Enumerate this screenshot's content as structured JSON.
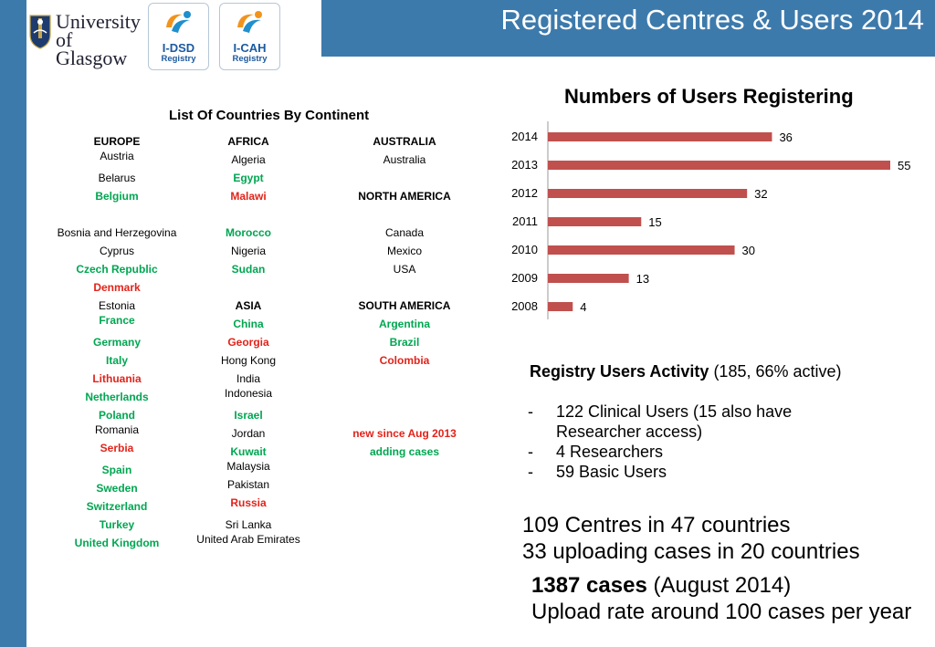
{
  "header": {
    "title": "Registered Centres & Users 2014",
    "university_line1": "University",
    "university_line2": "of Glasgow",
    "logos": [
      {
        "name": "I-DSD",
        "sub": "Registry"
      },
      {
        "name": "I-CAH",
        "sub": "Registry"
      }
    ],
    "bar_color": "#3d7aac"
  },
  "countries": {
    "title": "List Of Countries By Continent",
    "legend": {
      "green": "new since Aug 2013",
      "red": "adding cases"
    },
    "colors": {
      "green": "#00a651",
      "red": "#e2231a"
    },
    "col1": [
      {
        "text": "EUROPE",
        "style": "hdr"
      },
      {
        "text": "Austria",
        "style": "plain"
      },
      {
        "text": "Belarus",
        "style": "plain"
      },
      {
        "text": "Belgium",
        "style": "green"
      },
      {
        "text": "Bosnia and Herzegovina",
        "style": "plain"
      },
      {
        "text": "Cyprus",
        "style": "plain"
      },
      {
        "text": "Czech Republic",
        "style": "green"
      },
      {
        "text": "Denmark",
        "style": "red"
      },
      {
        "text": "Estonia",
        "style": "plain"
      },
      {
        "text": "France",
        "style": "green"
      },
      {
        "text": "Germany",
        "style": "green"
      },
      {
        "text": "Italy",
        "style": "green"
      },
      {
        "text": "Lithuania",
        "style": "red"
      },
      {
        "text": "Netherlands",
        "style": "green"
      },
      {
        "text": "Poland",
        "style": "green"
      },
      {
        "text": "Romania",
        "style": "plain"
      },
      {
        "text": "Serbia",
        "style": "red"
      },
      {
        "text": "Spain",
        "style": "green"
      },
      {
        "text": "Sweden",
        "style": "green"
      },
      {
        "text": "Switzerland",
        "style": "green"
      },
      {
        "text": "Turkey",
        "style": "green"
      },
      {
        "text": "United Kingdom",
        "style": "green"
      }
    ],
    "col2": [
      {
        "text": "AFRICA",
        "style": "hdr"
      },
      {
        "text": "Algeria",
        "style": "plain"
      },
      {
        "text": "Egypt",
        "style": "green"
      },
      {
        "text": "Malawi",
        "style": "red"
      },
      {
        "text": "Morocco",
        "style": "green"
      },
      {
        "text": "Nigeria",
        "style": "plain"
      },
      {
        "text": "Sudan",
        "style": "green"
      },
      {
        "text": "ASIA",
        "style": "hdr"
      },
      {
        "text": "China",
        "style": "green"
      },
      {
        "text": "Georgia",
        "style": "red"
      },
      {
        "text": "Hong Kong",
        "style": "plain"
      },
      {
        "text": "India",
        "style": "plain"
      },
      {
        "text": "Indonesia",
        "style": "plain"
      },
      {
        "text": "Israel",
        "style": "green"
      },
      {
        "text": "Jordan",
        "style": "plain"
      },
      {
        "text": "Kuwait",
        "style": "green"
      },
      {
        "text": "Malaysia",
        "style": "plain"
      },
      {
        "text": "Pakistan",
        "style": "plain"
      },
      {
        "text": "Russia",
        "style": "red"
      },
      {
        "text": "Sri Lanka",
        "style": "plain"
      },
      {
        "text": "United Arab Emirates",
        "style": "plain"
      }
    ],
    "col3": [
      {
        "text": "AUSTRALIA",
        "style": "hdr"
      },
      {
        "text": "Australia",
        "style": "plain"
      },
      {
        "text": "NORTH AMERICA",
        "style": "hdr"
      },
      {
        "text": "Canada",
        "style": "plain"
      },
      {
        "text": "Mexico",
        "style": "plain"
      },
      {
        "text": "USA",
        "style": "plain"
      },
      {
        "text": "SOUTH AMERICA",
        "style": "hdr"
      },
      {
        "text": "Argentina",
        "style": "green"
      },
      {
        "text": "Brazil",
        "style": "green"
      },
      {
        "text": "Colombia",
        "style": "red"
      }
    ]
  },
  "chart_data": {
    "type": "bar",
    "orientation": "horizontal",
    "title": "Numbers of Users Registering",
    "categories": [
      "2014",
      "2013",
      "2012",
      "2011",
      "2010",
      "2009",
      "2008"
    ],
    "values": [
      36,
      55,
      32,
      15,
      30,
      13,
      4
    ],
    "xlabel": "",
    "ylabel": "",
    "xlim": [
      0,
      55
    ],
    "grid": false,
    "bar_color": "#c0504d"
  },
  "activity": {
    "heading": "Registry Users Activity",
    "summary": "(185, 66% active)",
    "items": [
      {
        "dash": "-",
        "line1": "122 Clinical Users  (15 also have",
        "line2": "Researcher access)"
      },
      {
        "dash": "-",
        "line1": "4 Researchers"
      },
      {
        "dash": "-",
        "line1": "59 Basic Users"
      }
    ]
  },
  "summary": {
    "centres": "109 Centres in 47 countries",
    "uploading": "33 uploading cases in 20 countries",
    "cases_bold": "1387 cases",
    "cases_date": "(August 2014)",
    "upload_rate": "Upload rate around 100 cases per year"
  }
}
